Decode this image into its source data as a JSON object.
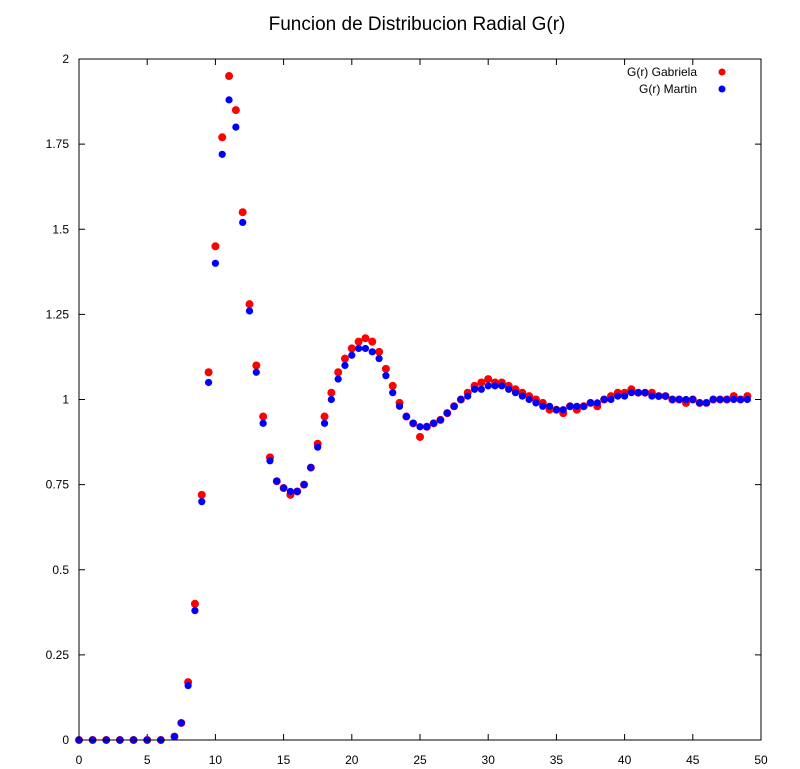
{
  "chart_data": {
    "type": "scatter",
    "title": "Funcion de Distribucion Radial G(r)",
    "xlabel": "",
    "ylabel": "",
    "xlim": [
      0,
      50
    ],
    "ylim": [
      0,
      2
    ],
    "x_ticks": [
      "0",
      "5",
      "10",
      "15",
      "20",
      "25",
      "30",
      "35",
      "40",
      "45",
      "50"
    ],
    "y_ticks": [
      "0",
      "0.25",
      "0.5",
      "0.75",
      "1",
      "1.25",
      "1.5",
      "1.75",
      "2"
    ],
    "legend_position": "top-right",
    "series": [
      {
        "name": "G(r) Gabriela",
        "color": "#ff0000",
        "x": [
          0,
          1,
          2,
          3,
          4,
          5,
          6,
          7,
          7.5,
          8,
          8.5,
          9,
          9.5,
          10,
          10.5,
          11,
          11.5,
          12,
          12.5,
          13,
          13.5,
          14,
          14.5,
          15,
          15.5,
          16,
          16.5,
          17,
          17.5,
          18,
          18.5,
          19,
          19.5,
          20,
          20.5,
          21,
          21.5,
          22,
          22.5,
          23,
          23.5,
          24,
          24.5,
          25,
          25.5,
          26,
          26.5,
          27,
          27.5,
          28,
          28.5,
          29,
          29.5,
          30,
          30.5,
          31,
          31.5,
          32,
          32.5,
          33,
          33.5,
          34,
          34.5,
          35,
          35.5,
          36,
          36.5,
          37,
          37.5,
          38,
          38.5,
          39,
          39.5,
          40,
          40.5,
          41,
          41.5,
          42,
          42.5,
          43,
          43.5,
          44,
          44.5,
          45,
          45.5,
          46,
          46.5,
          47,
          47.5,
          48,
          48.5,
          49
        ],
        "y": [
          0,
          0,
          0,
          0,
          0,
          0,
          0,
          0.01,
          0.05,
          0.17,
          0.4,
          0.72,
          1.08,
          1.45,
          1.77,
          1.95,
          1.85,
          1.55,
          1.28,
          1.1,
          0.95,
          0.83,
          0.76,
          0.74,
          0.72,
          0.73,
          0.75,
          0.8,
          0.87,
          0.95,
          1.02,
          1.08,
          1.12,
          1.15,
          1.17,
          1.18,
          1.17,
          1.14,
          1.09,
          1.04,
          0.99,
          0.95,
          0.93,
          0.89,
          0.92,
          0.93,
          0.94,
          0.96,
          0.98,
          1.0,
          1.02,
          1.04,
          1.05,
          1.06,
          1.05,
          1.05,
          1.04,
          1.03,
          1.02,
          1.01,
          1.0,
          0.99,
          0.97,
          0.97,
          0.96,
          0.98,
          0.97,
          0.98,
          0.99,
          0.98,
          1.0,
          1.01,
          1.02,
          1.02,
          1.03,
          1.02,
          1.02,
          1.02,
          1.01,
          1.01,
          1.0,
          1.0,
          0.99,
          1.0,
          0.99,
          0.99,
          1.0,
          1.0,
          1.0,
          1.01,
          1.0,
          1.01
        ]
      },
      {
        "name": "G(r) Martin",
        "color": "#0000ff",
        "x": [
          0,
          1,
          2,
          3,
          4,
          5,
          6,
          7,
          7.5,
          8,
          8.5,
          9,
          9.5,
          10,
          10.5,
          11,
          11.5,
          12,
          12.5,
          13,
          13.5,
          14,
          14.5,
          15,
          15.5,
          16,
          16.5,
          17,
          17.5,
          18,
          18.5,
          19,
          19.5,
          20,
          20.5,
          21,
          21.5,
          22,
          22.5,
          23,
          23.5,
          24,
          24.5,
          25,
          25.5,
          26,
          26.5,
          27,
          27.5,
          28,
          28.5,
          29,
          29.5,
          30,
          30.5,
          31,
          31.5,
          32,
          32.5,
          33,
          33.5,
          34,
          34.5,
          35,
          35.5,
          36,
          36.5,
          37,
          37.5,
          38,
          38.5,
          39,
          39.5,
          40,
          40.5,
          41,
          41.5,
          42,
          42.5,
          43,
          43.5,
          44,
          44.5,
          45,
          45.5,
          46,
          46.5,
          47,
          47.5,
          48,
          48.5,
          49
        ],
        "y": [
          0,
          0,
          0,
          0,
          0,
          0,
          0,
          0.01,
          0.05,
          0.16,
          0.38,
          0.7,
          1.05,
          1.4,
          1.72,
          1.88,
          1.8,
          1.52,
          1.26,
          1.08,
          0.93,
          0.82,
          0.76,
          0.74,
          0.73,
          0.73,
          0.75,
          0.8,
          0.86,
          0.93,
          1.0,
          1.06,
          1.1,
          1.13,
          1.15,
          1.15,
          1.14,
          1.12,
          1.07,
          1.02,
          0.98,
          0.95,
          0.93,
          0.92,
          0.92,
          0.93,
          0.94,
          0.96,
          0.98,
          1.0,
          1.01,
          1.03,
          1.03,
          1.04,
          1.04,
          1.04,
          1.03,
          1.02,
          1.01,
          1.0,
          0.99,
          0.98,
          0.98,
          0.97,
          0.97,
          0.98,
          0.98,
          0.98,
          0.99,
          0.99,
          1.0,
          1.0,
          1.01,
          1.01,
          1.02,
          1.02,
          1.02,
          1.01,
          1.01,
          1.01,
          1.0,
          1.0,
          1.0,
          1.0,
          0.99,
          0.99,
          1.0,
          1.0,
          1.0,
          1.0,
          1.0,
          1.0
        ]
      }
    ]
  }
}
